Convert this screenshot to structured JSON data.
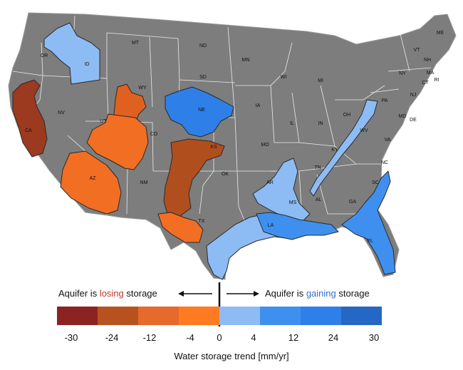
{
  "map": {
    "states": [
      "OR",
      "ID",
      "MT",
      "ND",
      "MN",
      "WI",
      "MI",
      "ME",
      "VT",
      "NH",
      "MA",
      "RI",
      "CT",
      "NY",
      "PA",
      "NJ",
      "DE",
      "MD",
      "NV",
      "WY",
      "SD",
      "NE",
      "IA",
      "IL",
      "IN",
      "OH",
      "CA",
      "UT",
      "CO",
      "KS",
      "MO",
      "KY",
      "WV",
      "VA",
      "NC",
      "TN",
      "SC",
      "AZ",
      "NM",
      "OK",
      "AR",
      "MS",
      "AL",
      "GA",
      "TX",
      "LA",
      "FL"
    ],
    "colors": {
      "land": "#7d7d7d",
      "state_border": "#ffffff",
      "losing": [
        "#8b2323",
        "#b7521f",
        "#e56a2b",
        "#ff7a21"
      ],
      "gaining": [
        "#8dbcf5",
        "#3f90ee",
        "#2f7fe8",
        "#2567c4"
      ]
    },
    "aquifers": [
      {
        "name": "idaho",
        "trend": "gaining",
        "level": 4
      },
      {
        "name": "central-valley",
        "trend": "losing",
        "level": -30
      },
      {
        "name": "great-basin",
        "trend": "losing",
        "level": -24
      },
      {
        "name": "colorado-plateau",
        "trend": "losing",
        "level": -4
      },
      {
        "name": "arizona-basin",
        "trend": "losing",
        "level": -4
      },
      {
        "name": "high-plains-north",
        "trend": "gaining",
        "level": 12
      },
      {
        "name": "high-plains-south",
        "trend": "losing",
        "level": -24
      },
      {
        "name": "pecos",
        "trend": "losing",
        "level": -4
      },
      {
        "name": "mississippi-embayment",
        "trend": "gaining",
        "level": 4
      },
      {
        "name": "appalachian",
        "trend": "gaining",
        "level": 4
      },
      {
        "name": "gulf-coastal",
        "trend": "gaining",
        "level": 4
      },
      {
        "name": "gulf-coast-east",
        "trend": "gaining",
        "level": 12
      },
      {
        "name": "floridan",
        "trend": "gaining",
        "level": 12
      }
    ]
  },
  "legend": {
    "lose_prefix": "Aquifer is ",
    "lose_keyword": "losing",
    "lose_suffix": " storage",
    "gain_prefix": "Aquifer is ",
    "gain_keyword": "gaining",
    "gain_suffix": " storage",
    "ticks": [
      "-30",
      "-24",
      "-12",
      "-4",
      "0",
      "4",
      "12",
      "24",
      "30"
    ],
    "scale_colors": [
      "#8b2323",
      "#b7521f",
      "#e56a2b",
      "#ff7a21",
      "#8dbcf5",
      "#3f90ee",
      "#2f7fe8",
      "#2567c4"
    ],
    "axis_label": "Water storage trend [mm/yr]"
  }
}
